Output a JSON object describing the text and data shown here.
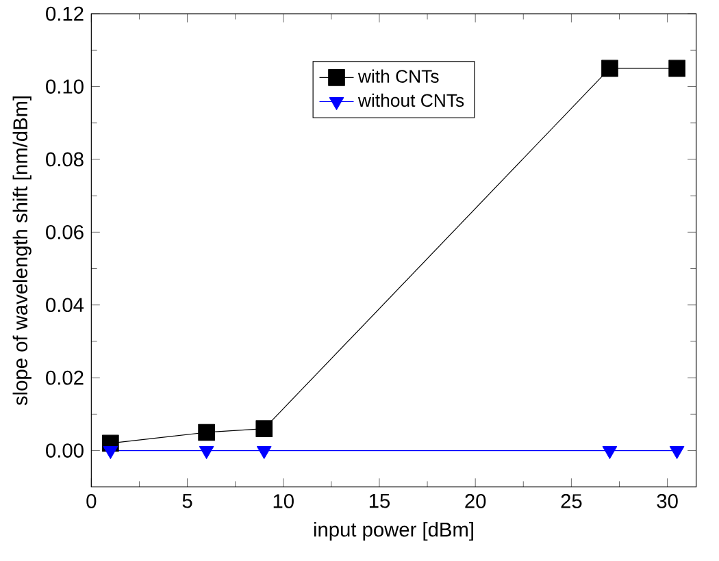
{
  "chart_data": {
    "type": "line",
    "xlabel": "input power [dBm]",
    "ylabel": "slope of wavelength shift [nm/dBm]",
    "xlim": [
      0,
      31.5
    ],
    "ylim": [
      -0.01,
      0.12
    ],
    "xticks": [
      0,
      5,
      10,
      15,
      20,
      25,
      30
    ],
    "yticks": [
      {
        "value": 0,
        "label": "0.00"
      },
      {
        "value": 0.02,
        "label": "0.02"
      },
      {
        "value": 0.04,
        "label": "0.04"
      },
      {
        "value": 0.06,
        "label": "0.06"
      },
      {
        "value": 0.08,
        "label": "0.08"
      },
      {
        "value": 0.1,
        "label": "0.10"
      },
      {
        "value": 0.12,
        "label": "0.12"
      }
    ],
    "series": [
      {
        "name": "with CNTs",
        "color": "#000000",
        "marker": "square",
        "x": [
          1,
          6,
          9,
          27,
          30.5
        ],
        "values": [
          0.002,
          0.005,
          0.006,
          0.105,
          0.105
        ]
      },
      {
        "name": "without CNTs",
        "color": "#0000ff",
        "marker": "triangle",
        "x": [
          1,
          6,
          9,
          27,
          30.5
        ],
        "values": [
          0,
          0,
          0,
          0,
          0
        ]
      }
    ],
    "legend": "top",
    "grid": false
  }
}
